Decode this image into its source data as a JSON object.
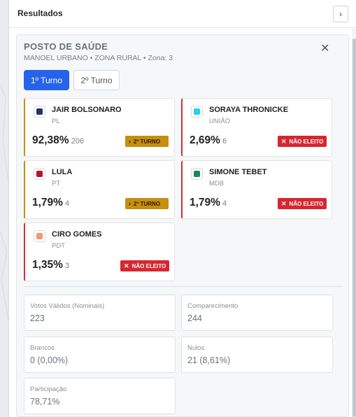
{
  "panel": {
    "title": "Resultados",
    "expand_icon": "chevron-right-icon"
  },
  "location": {
    "title": "POSTO DE SAÚDE",
    "subtitle": "MANOEL URBANO • ZONA RURAL • Zona: 3",
    "close_icon": "close-icon"
  },
  "tabs": [
    {
      "label": "1º Turno",
      "active": true
    },
    {
      "label": "2º Turno",
      "active": false
    }
  ],
  "candidates": [
    {
      "name": "JAIR BOLSONARO",
      "party": "PL",
      "color": "#2c2f5e",
      "pct": "92,38%",
      "votes": "206",
      "status": "2º TURNO",
      "status_color": "#c58f0f"
    },
    {
      "name": "SORAYA THRONICKE",
      "party": "UNIÃO",
      "color": "#22d3ee",
      "pct": "2,69%",
      "votes": "6",
      "status": "NÃO ELEITO",
      "status_color": "#d8262f"
    },
    {
      "name": "LULA",
      "party": "PT",
      "color": "#b0182b",
      "pct": "1,79%",
      "votes": "4",
      "status": "2º TURNO",
      "status_color": "#c58f0f"
    },
    {
      "name": "SIMONE TEBET",
      "party": "MDB",
      "color": "#1a8a5a",
      "pct": "1,79%",
      "votes": "4",
      "status": "NÃO ELEITO",
      "status_color": "#d8262f"
    },
    {
      "name": "CIRO GOMES",
      "party": "PDT",
      "color": "#f4957a",
      "pct": "1,35%",
      "votes": "3",
      "status": "NÃO ELEITO",
      "status_color": "#d8262f"
    }
  ],
  "stats": [
    {
      "label": "Votos Válidos (Nominais)",
      "value": "223"
    },
    {
      "label": "Comparecimento",
      "value": "244"
    },
    {
      "label": "Brancos",
      "value": "0 (0,00%)"
    },
    {
      "label": "Nulos",
      "value": "21 (8,61%)"
    },
    {
      "label": "Participação",
      "value": "78,71%"
    }
  ],
  "colors": {
    "accent": "#2563eb",
    "runoff": "#c58f0f",
    "not_elected": "#d8262f"
  }
}
